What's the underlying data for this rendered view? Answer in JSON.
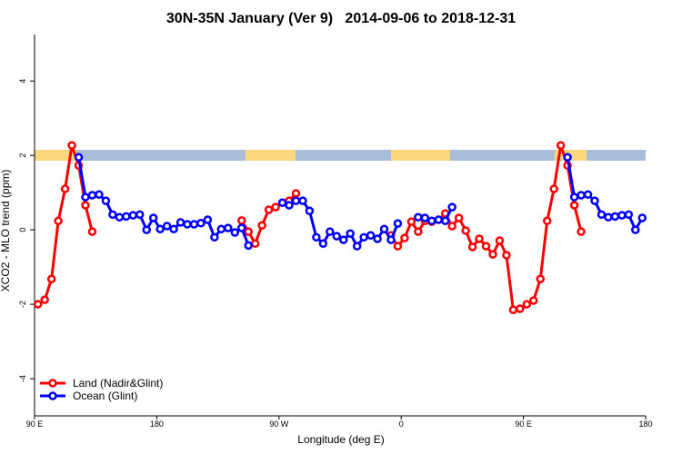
{
  "chart_data": {
    "type": "line",
    "title": "30N-35N January (Ver 9)   2014-09-06 to 2018-12-31",
    "x_label": "Longitude (deg E)",
    "y_label": "XCO2 - MLO trend (ppm)",
    "x": [
      92.5,
      97.5,
      102.5,
      107.5,
      112.5,
      117.5,
      122.5,
      127.5,
      132.5,
      137.5,
      142.5,
      147.5,
      152.5,
      157.5,
      162.5,
      167.5,
      172.5,
      177.5,
      182.5,
      187.5,
      192.5,
      197.5,
      202.5,
      207.5,
      212.5,
      217.5,
      222.5,
      227.5,
      232.5,
      237.5,
      242.5,
      247.5,
      252.5,
      257.5,
      262.5,
      267.5,
      272.5,
      277.5,
      282.5,
      287.5,
      292.5,
      297.5,
      302.5,
      307.5,
      312.5,
      317.5,
      322.5,
      327.5,
      332.5,
      337.5,
      342.5,
      347.5,
      352.5,
      357.5,
      362.5,
      367.5,
      372.5,
      377.5,
      382.5,
      387.5,
      392.5,
      397.5,
      402.5,
      407.5,
      412.5,
      417.5,
      422.5,
      427.5,
      432.5,
      437.5,
      442.5,
      447.5,
      452.5,
      457.5,
      462.5,
      467.5,
      472.5,
      477.5,
      482.5,
      487.5,
      492.5,
      497.5,
      502.5,
      507.5,
      512.5,
      517.5,
      522.5,
      527.5,
      532.5,
      537.5
    ],
    "series": [
      {
        "name": "Land (Nadir&Glint)",
        "color": "#ff0000",
        "values": [
          -2.0,
          -1.88,
          -1.32,
          0.24,
          1.1,
          2.27,
          1.73,
          0.66,
          -0.05,
          null,
          null,
          null,
          null,
          null,
          null,
          null,
          null,
          null,
          null,
          null,
          null,
          null,
          null,
          null,
          null,
          null,
          null,
          null,
          null,
          null,
          0.25,
          -0.05,
          -0.37,
          0.12,
          0.54,
          0.61,
          0.73,
          0.78,
          0.98,
          null,
          null,
          null,
          null,
          null,
          null,
          null,
          null,
          null,
          null,
          null,
          null,
          null,
          -0.15,
          -0.44,
          -0.22,
          0.22,
          -0.05,
          0.24,
          0.22,
          0.27,
          0.44,
          0.1,
          0.32,
          -0.02,
          -0.46,
          -0.24,
          -0.44,
          -0.66,
          -0.29,
          -0.68,
          -2.15,
          -2.12,
          -2.0,
          -1.9,
          -1.32,
          0.24,
          1.1,
          2.27,
          1.73,
          0.66,
          -0.05,
          null,
          null,
          null,
          null,
          null,
          null,
          null,
          null,
          null
        ]
      },
      {
        "name": "Ocean (Glint)",
        "color": "#0000ff",
        "values": [
          null,
          null,
          null,
          null,
          null,
          null,
          1.95,
          0.88,
          0.93,
          0.95,
          0.78,
          0.41,
          0.34,
          0.36,
          0.39,
          0.41,
          0.0,
          0.32,
          0.02,
          0.1,
          0.02,
          0.2,
          0.15,
          0.15,
          0.18,
          0.27,
          -0.2,
          0.02,
          0.05,
          -0.07,
          0.05,
          -0.42,
          null,
          null,
          null,
          null,
          0.73,
          0.66,
          0.78,
          0.78,
          0.51,
          -0.2,
          -0.37,
          -0.05,
          -0.17,
          -0.27,
          -0.1,
          -0.44,
          -0.2,
          -0.15,
          -0.24,
          0.02,
          -0.27,
          0.17,
          null,
          null,
          0.34,
          0.32,
          0.24,
          0.27,
          0.24,
          0.61,
          null,
          null,
          null,
          null,
          null,
          null,
          null,
          null,
          null,
          null,
          null,
          null,
          null,
          null,
          null,
          null,
          1.95,
          0.88,
          0.93,
          0.95,
          0.78,
          0.41,
          0.34,
          0.36,
          0.39,
          0.41,
          0.0,
          0.32
        ]
      }
    ],
    "xlim": [
      90,
      540
    ],
    "xticks": [
      {
        "value": 90,
        "label": "90 E"
      },
      {
        "value": 180,
        "label": "180"
      },
      {
        "value": 270,
        "label": "90 W"
      },
      {
        "value": 360,
        "label": "0"
      },
      {
        "value": 450,
        "label": "90 E"
      },
      {
        "value": 540,
        "label": "180"
      }
    ],
    "ylim": [
      -5,
      5.25
    ],
    "yticks": [
      -4,
      -2,
      0,
      2,
      4
    ],
    "legend": "bottom-left"
  }
}
